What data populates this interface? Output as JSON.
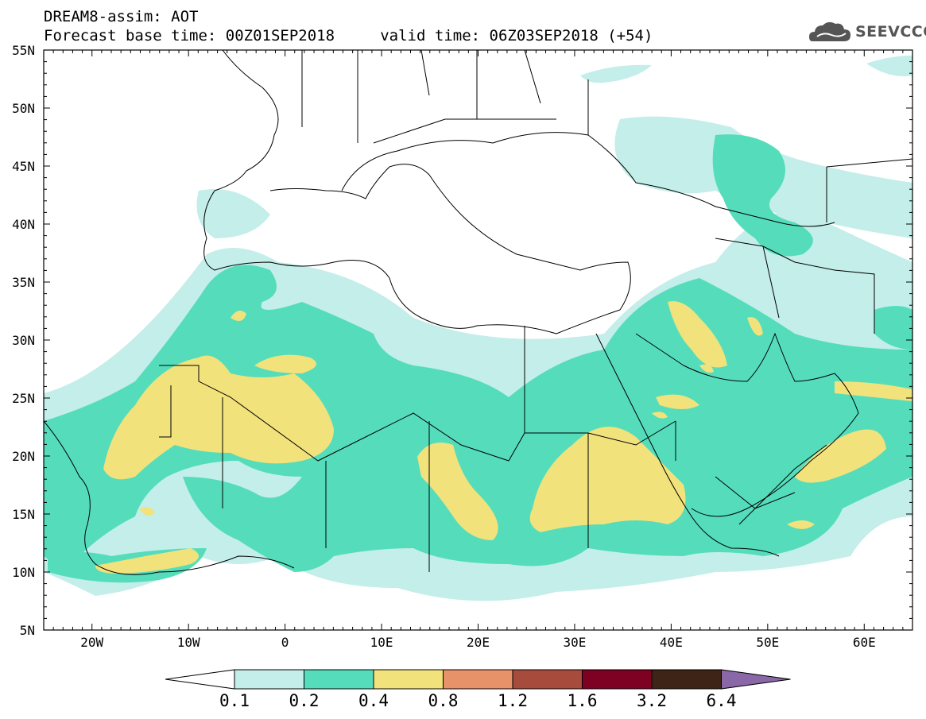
{
  "header": {
    "title_line1": "DREAM8-assim: AOT",
    "title_line2": "Forecast base time: 00Z01SEP2018     valid time: 06Z03SEP2018 (+54)",
    "logo_text": "SEEVCCC"
  },
  "map": {
    "lat_labels": [
      "55N",
      "50N",
      "45N",
      "40N",
      "35N",
      "30N",
      "25N",
      "20N",
      "15N",
      "10N",
      "5N"
    ],
    "lon_labels": [
      "20W",
      "10W",
      "0",
      "10E",
      "20E",
      "30E",
      "40E",
      "50E",
      "60E"
    ],
    "lat_range": [
      5,
      55
    ],
    "lon_range": [
      -25,
      65
    ]
  },
  "colorbar": {
    "labels": [
      "0.1",
      "0.2",
      "0.4",
      "0.8",
      "1.2",
      "1.6",
      "3.2",
      "6.4"
    ],
    "colors": [
      "#ffffff",
      "#c4eee9",
      "#55ddbb",
      "#f2e27c",
      "#e8926a",
      "#a74b3c",
      "#7e0023",
      "#3d2416",
      "#8a67a6"
    ]
  },
  "icons": {
    "logo": "cloud-logo-icon"
  }
}
